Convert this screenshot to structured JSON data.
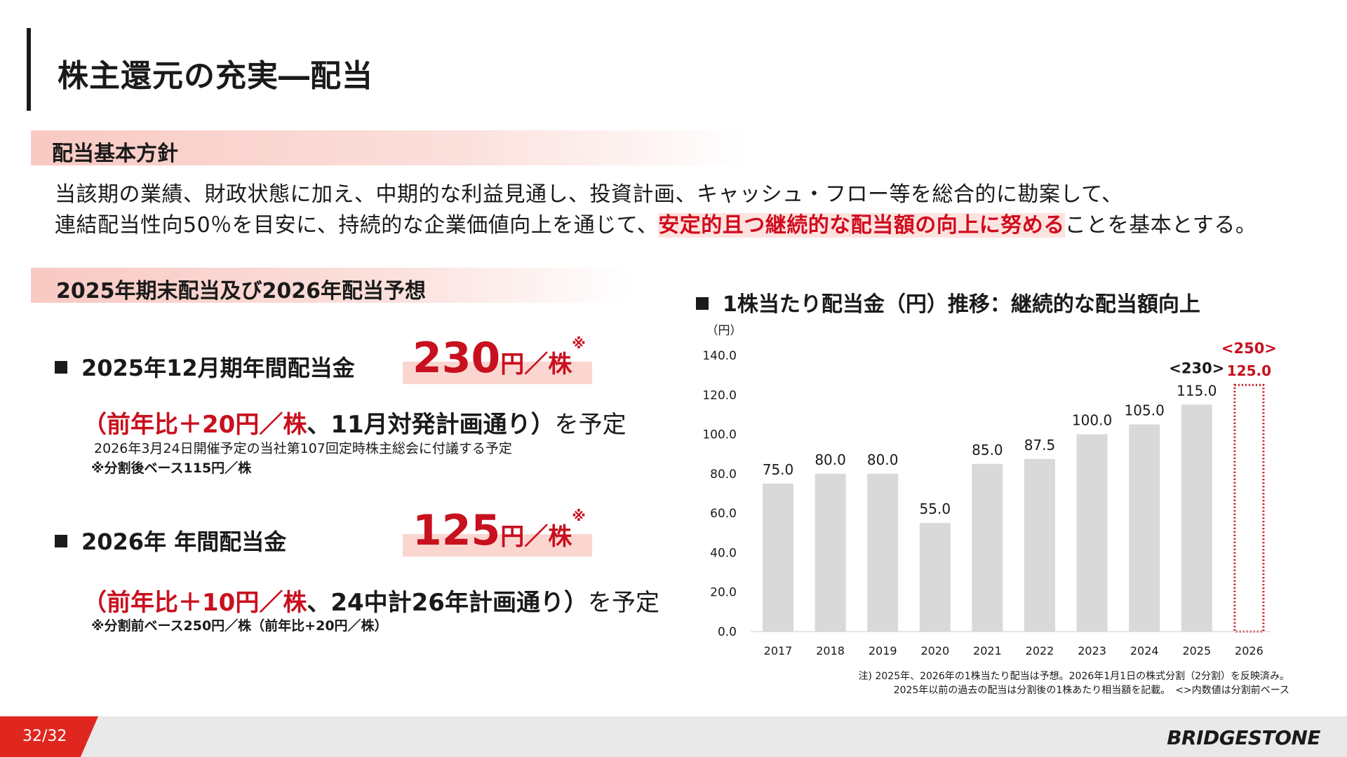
{
  "title": "株主還元の充実―配当",
  "policy": {
    "heading": "配当基本方針",
    "line1": "当該期の業績、財政状態に加え、中期的な利益見通し、投資計画、キャッシュ・フロー等を総合的に勘案して、",
    "line2_prefix": "連結配当性向50％を目安に、持続的な企業価値向上を通じて、",
    "line2_highlight": "安定的且つ継続的な配当額の向上に努める",
    "line2_suffix": "ことを基本とする。"
  },
  "forecast": {
    "heading": "2025年期末配当及び2026年配当予想",
    "item1": {
      "label": "2025年12月期年間配当金",
      "amount": "230",
      "unit": "円／株",
      "mark": "※",
      "change": "（前年比＋20円／株",
      "plan": "、11月対発計画通り）",
      "suffix": "を予定",
      "note1": "2026年3月24日開催予定の当社第107回定時株主総会に付議する予定",
      "note2": "※分割後ベース115円／株"
    },
    "item2": {
      "label": "2026年 年間配当金",
      "amount": "125",
      "unit": "円／株",
      "mark": "※",
      "change": "（前年比＋10円／株",
      "plan": "、24中計26年計画通り）",
      "suffix": "を予定",
      "note1": "※分割前ベース250円／株（前年比+20円／株）"
    }
  },
  "chart": {
    "title": "1株当たり配当金（円）推移：継続的な配当額向上",
    "footnote1": "注) 2025年、2026年の1株当たり配当は予想。2026年1月1日の株式分割（2分割）を反映済み。",
    "footnote2": "2025年以前の過去の配当は分割後の1株あたり相当額を記載。　<>内数値は分割前ベース"
  },
  "chart_data": {
    "type": "bar",
    "categories": [
      "2017",
      "2018",
      "2019",
      "2020",
      "2021",
      "2022",
      "2023",
      "2024",
      "2025",
      "2026"
    ],
    "values": [
      75.0,
      80.0,
      80.0,
      55.0,
      85.0,
      87.5,
      100.0,
      105.0,
      115.0,
      125.0
    ],
    "value_labels": [
      "75.0",
      "80.0",
      "80.0",
      "55.0",
      "85.0",
      "87.5",
      "100.0",
      "105.0",
      "115.0",
      "125.0"
    ],
    "forecast_index": 9,
    "pre_split_labels": {
      "2025": "<230>",
      "2026": "<250>"
    },
    "yticks": [
      "0.0",
      "20.0",
      "40.0",
      "60.0",
      "80.0",
      "100.0",
      "120.0",
      "140.0"
    ],
    "ylabel": "（円）",
    "ylim": [
      0,
      140
    ],
    "bar_color": "#d9d9d9",
    "forecast_color": "#c8101e",
    "grid": false
  },
  "footer": {
    "page": "32/32",
    "logo": "BRIDGESTONE"
  }
}
